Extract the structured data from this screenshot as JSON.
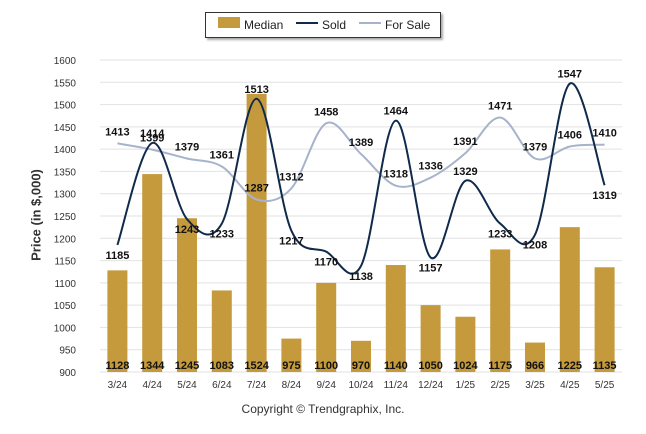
{
  "legend": {
    "median_label": "Median",
    "sold_label": "Sold",
    "forsale_label": "For Sale"
  },
  "credit": "Copyright © Trendgraphix, Inc.",
  "colors": {
    "median": "#C49A3C",
    "sold": "#0F2A4A",
    "forsale": "#A7B3CB",
    "grid": "#E2E2E2"
  },
  "chart_data": {
    "type": "bar",
    "title": "",
    "xlabel": "",
    "ylabel": "Price (in $,000)",
    "ylim": [
      900,
      1600
    ],
    "yticks": [
      900,
      950,
      1000,
      1050,
      1100,
      1150,
      1200,
      1250,
      1300,
      1350,
      1400,
      1450,
      1500,
      1550,
      1600
    ],
    "grid": true,
    "legend_position": "top-center",
    "categories": [
      "3/24",
      "4/24",
      "5/24",
      "6/24",
      "7/24",
      "8/24",
      "9/24",
      "10/24",
      "11/24",
      "12/24",
      "1/25",
      "2/25",
      "3/25",
      "4/25",
      "5/25"
    ],
    "series": [
      {
        "name": "Median",
        "type": "bar",
        "values": [
          1128,
          1344,
          1245,
          1083,
          1524,
          975,
          1100,
          970,
          1140,
          1050,
          1024,
          1175,
          966,
          1225,
          1135
        ]
      },
      {
        "name": "Sold",
        "type": "line",
        "values": [
          1185,
          1414,
          1243,
          1233,
          1513,
          1217,
          1170,
          1138,
          1464,
          1157,
          1329,
          1233,
          1208,
          1547,
          1319
        ]
      },
      {
        "name": "For Sale",
        "type": "line",
        "values": [
          1413,
          1399,
          1379,
          1361,
          1287,
          1312,
          1458,
          1389,
          1318,
          1336,
          1391,
          1471,
          1379,
          1406,
          1410
        ]
      }
    ]
  }
}
